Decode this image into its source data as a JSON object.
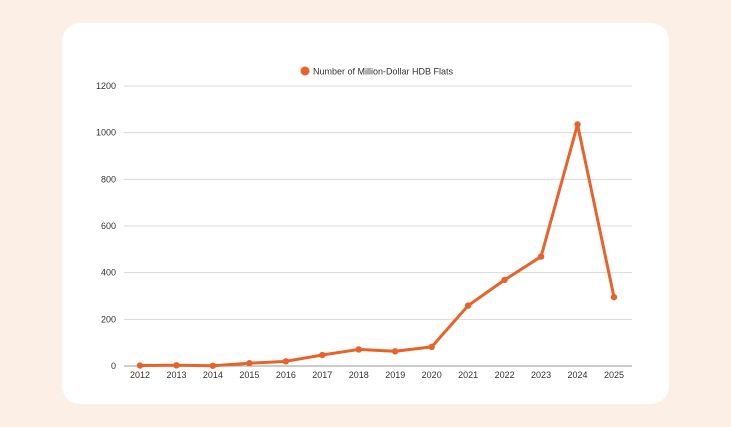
{
  "colors": {
    "page_background": "#fcefe6",
    "card_background": "#ffffff",
    "series": "#e8622a",
    "grid": "#d9d9d9",
    "axis": "#999999",
    "text": "#333333"
  },
  "chart_data": {
    "type": "line",
    "title": "",
    "xlabel": "",
    "ylabel": "",
    "categories": [
      "2012",
      "2013",
      "2014",
      "2015",
      "2016",
      "2017",
      "2018",
      "2019",
      "2020",
      "2021",
      "2022",
      "2023",
      "2024",
      "2025"
    ],
    "series": [
      {
        "name": "Number of Million-Dollar HDB Flats",
        "values": [
          2,
          3,
          1,
          12,
          20,
          47,
          71,
          63,
          82,
          259,
          369,
          469,
          1035,
          295
        ]
      }
    ],
    "ylim": [
      0,
      1200
    ],
    "yticks": [
      0,
      200,
      400,
      600,
      800,
      1000,
      1200
    ],
    "grid": "horizontal",
    "legend": "top-center",
    "markers": true
  }
}
